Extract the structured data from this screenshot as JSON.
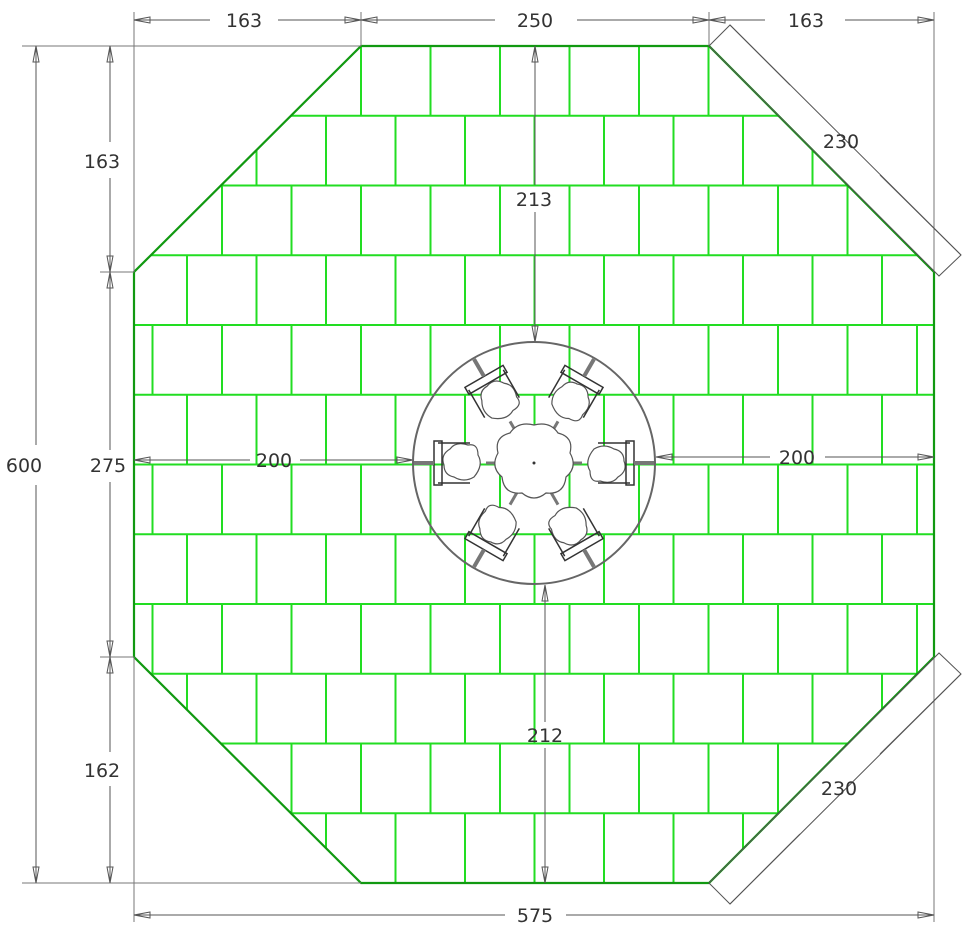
{
  "drawing": {
    "type": "octagonal floor plan with tile layout and seating",
    "tile_color": "#22dd22",
    "outline_color": "#119911",
    "dimension_color": "#555555"
  },
  "dimensions": {
    "top_left": "163",
    "top_center": "250",
    "top_right": "163",
    "diag_top_right": "230",
    "diag_bottom_right": "230",
    "left_overall": "600",
    "left_upper": "163",
    "left_middle": "275",
    "left_lower": "162",
    "bottom_overall": "575",
    "center_top": "213",
    "center_bottom": "212",
    "center_left": "200",
    "center_right": "200"
  },
  "furniture": {
    "round_table_count": 1,
    "chair_count": 6,
    "circle_boundary": true
  }
}
